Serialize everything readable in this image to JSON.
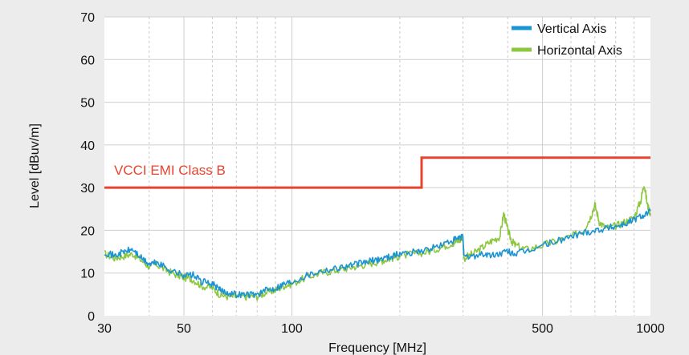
{
  "chart_data": {
    "type": "line",
    "title": "",
    "xlabel": "Frequency [MHz]",
    "ylabel": "Level [dBuv/m]",
    "x_scale": "log",
    "xlim": [
      30,
      1000
    ],
    "ylim": [
      0,
      70
    ],
    "grid": true,
    "legend_position": "top-right",
    "x_tick_labels": [
      "30",
      "50",
      "100",
      "500",
      "1000"
    ],
    "x_tick_values": [
      30,
      50,
      100,
      500,
      1000
    ],
    "y_tick_labels": [
      "0",
      "10",
      "20",
      "30",
      "40",
      "50",
      "60",
      "70"
    ],
    "y_tick_values": [
      0,
      10,
      20,
      30,
      40,
      50,
      60,
      70
    ],
    "limit": {
      "name": "VCCI EMI Class B",
      "color": "#e8432e",
      "x": [
        30,
        230,
        230,
        1000
      ],
      "y": [
        30,
        30,
        37,
        37
      ]
    },
    "series": [
      {
        "name": "Vertical Axis",
        "color": "#1a94d4",
        "x": [
          30,
          32,
          34,
          36,
          38,
          40,
          42,
          45,
          48,
          50,
          53,
          56,
          60,
          63,
          66,
          70,
          75,
          80,
          85,
          90,
          95,
          100,
          110,
          120,
          130,
          140,
          150,
          160,
          170,
          180,
          190,
          200,
          220,
          240,
          260,
          280,
          290,
          300,
          302,
          320,
          340,
          360,
          380,
          400,
          420,
          450,
          500,
          550,
          600,
          650,
          700,
          750,
          800,
          850,
          900,
          950,
          1000
        ],
        "y": [
          15,
          14,
          15,
          15.5,
          13.5,
          12,
          12.5,
          11,
          10,
          9.5,
          9.5,
          8,
          7.5,
          6,
          5.5,
          5,
          5,
          5,
          6,
          6.5,
          7.5,
          8,
          9.5,
          10.5,
          11,
          11.5,
          12,
          12.5,
          13,
          13.5,
          14,
          14.5,
          15,
          15.5,
          16.5,
          17.5,
          18,
          18.5,
          13.5,
          14,
          14.5,
          14,
          14.5,
          15,
          14.5,
          15,
          16.5,
          17.5,
          18.5,
          19.5,
          20,
          20.5,
          21,
          21.5,
          22.5,
          23.5,
          24.5
        ]
      },
      {
        "name": "Horizontal Axis",
        "color": "#8dc63f",
        "x": [
          30,
          32,
          34,
          36,
          38,
          40,
          42,
          45,
          48,
          50,
          53,
          56,
          60,
          63,
          66,
          70,
          75,
          80,
          85,
          90,
          95,
          100,
          110,
          120,
          130,
          140,
          150,
          160,
          170,
          180,
          190,
          200,
          220,
          240,
          260,
          280,
          290,
          300,
          302,
          320,
          340,
          360,
          380,
          390,
          400,
          410,
          420,
          450,
          500,
          550,
          600,
          650,
          680,
          700,
          720,
          750,
          800,
          850,
          900,
          940,
          960,
          980,
          1000
        ],
        "y": [
          14.5,
          13.5,
          14,
          14.5,
          13,
          11.5,
          12,
          10.5,
          9.5,
          9,
          8.5,
          7,
          6.5,
          5,
          4.5,
          4.5,
          4.5,
          4.5,
          5.5,
          6,
          7,
          7.5,
          9,
          10,
          10.5,
          11,
          11.5,
          12,
          12.5,
          13,
          13.5,
          14,
          14.5,
          15,
          16,
          17,
          17.5,
          18,
          13.5,
          14.5,
          16,
          17.5,
          18.5,
          24,
          20,
          17.5,
          16.5,
          15.5,
          16.5,
          17.5,
          18.5,
          20,
          23,
          26,
          22,
          20.5,
          21,
          22,
          23,
          27,
          31,
          26,
          24
        ]
      }
    ]
  }
}
